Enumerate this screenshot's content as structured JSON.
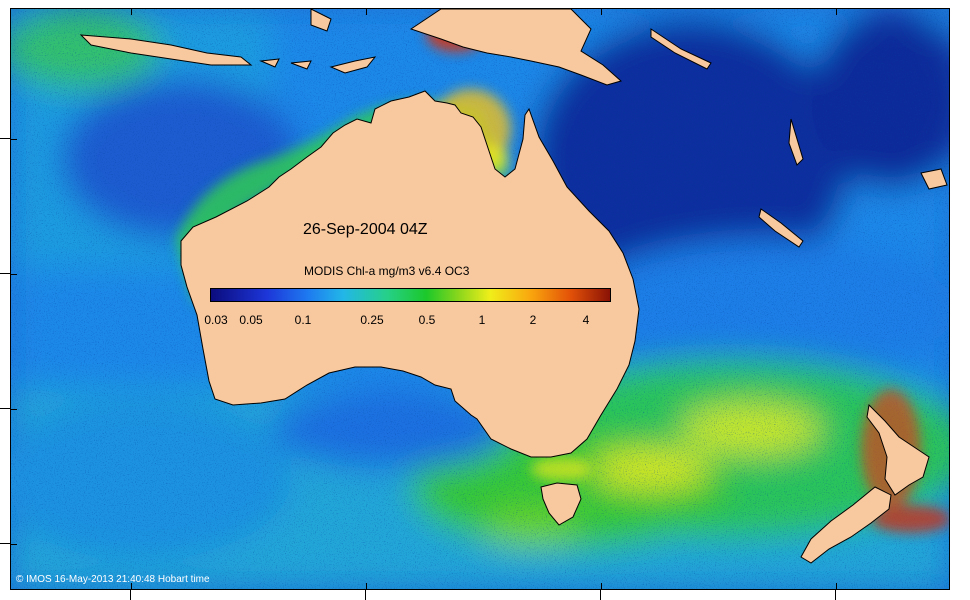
{
  "map": {
    "date_label": "26-Sep-2004 04Z",
    "legend_title": "MODIS Chl-a mg/m3 v6.4 OC3",
    "colorbar_labels": [
      "0.03",
      "0.05",
      "0.1",
      "0.25",
      "0.5",
      "1",
      "2",
      "4"
    ],
    "copyright": "© IMOS 16-May-2013 21:40:48 Hobart time",
    "colors": {
      "land": "#f8c89e",
      "ocean_deep": "#0b2a9a",
      "ocean_mid": "#1e88e8",
      "ocean_green": "#27c46a",
      "high_chl_yellow": "#e8ee20",
      "high_chl_red": "#c8281a"
    }
  }
}
